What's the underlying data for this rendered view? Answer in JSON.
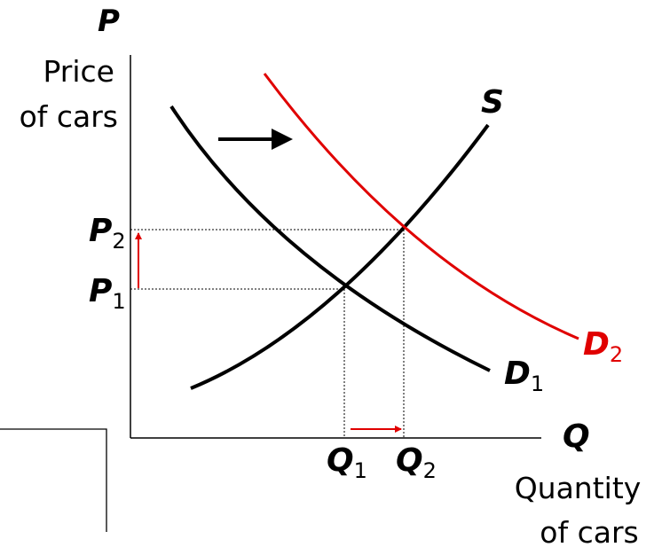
{
  "axes": {
    "y_symbol": "P",
    "y_label_line1": "Price",
    "y_label_line2": "of cars",
    "x_symbol": "Q",
    "x_label_line1": "Quantity",
    "x_label_line2": "of cars"
  },
  "curves": {
    "supply": {
      "symbol": "S",
      "color": "#000000"
    },
    "demand1": {
      "symbol": "D",
      "subscript": "1",
      "color": "#000000"
    },
    "demand2": {
      "symbol": "D",
      "subscript": "2",
      "color": "#e00000"
    }
  },
  "levels": {
    "p1": {
      "symbol": "P",
      "subscript": "1"
    },
    "p2": {
      "symbol": "P",
      "subscript": "2"
    },
    "q1": {
      "symbol": "Q",
      "subscript": "1"
    },
    "q2": {
      "symbol": "Q",
      "subscript": "2"
    }
  },
  "colors": {
    "shift_arrow": "#000000",
    "change_arrows": "#e00000"
  },
  "icons": [
    "right-arrow-icon",
    "up-arrow-icon"
  ]
}
